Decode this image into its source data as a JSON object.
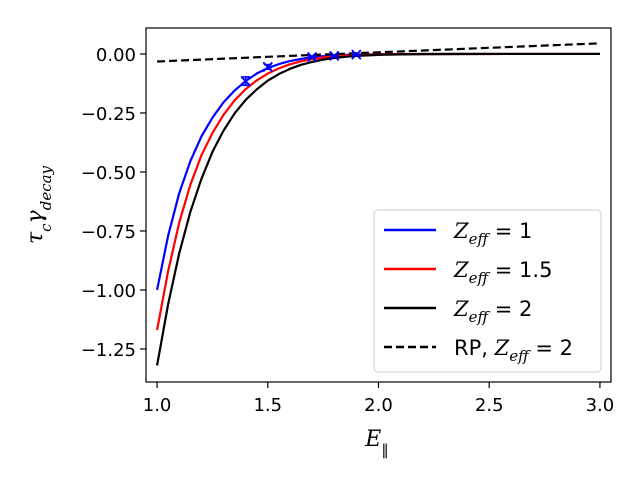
{
  "chart_data": {
    "type": "line",
    "xlabel": "E∥",
    "ylabel": "τcγdecay",
    "xlim": [
      0.95,
      3.05
    ],
    "ylim": [
      -1.39,
      0.11
    ],
    "xticks": [
      1.0,
      1.5,
      2.0,
      2.5,
      3.0
    ],
    "xtick_labels": [
      "1.0",
      "1.5",
      "2.0",
      "2.5",
      "3.0"
    ],
    "yticks": [
      0.0,
      -0.25,
      -0.5,
      -0.75,
      -1.0,
      -1.25
    ],
    "ytick_labels": [
      "0.00",
      "−0.25",
      "−0.50",
      "−0.75",
      "−1.00",
      "−1.25"
    ],
    "grid": false,
    "legend_position": "lower-right",
    "series": [
      {
        "name": "Z_eff = 1",
        "legend_main": "Z",
        "legend_sub": "eff",
        "legend_rest": " = 1",
        "color": "#0000ff",
        "style": "solid",
        "x": [
          1.0,
          1.05,
          1.1,
          1.15,
          1.2,
          1.25,
          1.3,
          1.35,
          1.4,
          1.45,
          1.5,
          1.55,
          1.6,
          1.65,
          1.7,
          1.75,
          1.8,
          1.85,
          1.9,
          2.0,
          2.1,
          2.2,
          2.4,
          2.6,
          2.8,
          3.0
        ],
        "y": [
          -1.0,
          -0.77,
          -0.59,
          -0.455,
          -0.35,
          -0.27,
          -0.205,
          -0.155,
          -0.115,
          -0.083,
          -0.06,
          -0.043,
          -0.03,
          -0.021,
          -0.014,
          -0.0095,
          -0.006,
          -0.004,
          -0.0025,
          -0.001,
          -0.0003,
          -0.0001,
          0.0,
          0.0,
          0.0,
          0.0
        ]
      },
      {
        "name": "Z_eff = 1.5",
        "legend_main": "Z",
        "legend_sub": "eff",
        "legend_rest": " = 1.5",
        "color": "#ff0000",
        "style": "solid",
        "x": [
          1.0,
          1.05,
          1.1,
          1.15,
          1.2,
          1.25,
          1.3,
          1.35,
          1.4,
          1.45,
          1.5,
          1.55,
          1.6,
          1.65,
          1.7,
          1.75,
          1.8,
          1.85,
          1.9,
          2.0,
          2.1,
          2.2,
          2.4,
          2.6,
          2.8,
          3.0
        ],
        "y": [
          -1.17,
          -0.92,
          -0.715,
          -0.555,
          -0.43,
          -0.335,
          -0.258,
          -0.197,
          -0.149,
          -0.112,
          -0.083,
          -0.061,
          -0.044,
          -0.031,
          -0.022,
          -0.015,
          -0.01,
          -0.0068,
          -0.0045,
          -0.002,
          -0.0008,
          -0.0003,
          -0.0001,
          0.0,
          0.0,
          0.0
        ]
      },
      {
        "name": "Z_eff = 2",
        "legend_main": "Z",
        "legend_sub": "eff",
        "legend_rest": " = 2",
        "color": "#000000",
        "style": "solid",
        "x": [
          1.0,
          1.05,
          1.1,
          1.15,
          1.2,
          1.25,
          1.3,
          1.35,
          1.4,
          1.45,
          1.5,
          1.55,
          1.6,
          1.65,
          1.7,
          1.75,
          1.8,
          1.85,
          1.9,
          2.0,
          2.1,
          2.2,
          2.4,
          2.6,
          2.8,
          3.0
        ],
        "y": [
          -1.32,
          -1.06,
          -0.845,
          -0.67,
          -0.53,
          -0.415,
          -0.325,
          -0.252,
          -0.195,
          -0.15,
          -0.113,
          -0.085,
          -0.063,
          -0.046,
          -0.034,
          -0.024,
          -0.017,
          -0.012,
          -0.008,
          -0.0038,
          -0.0016,
          -0.0006,
          -0.0001,
          0.0,
          0.0,
          0.0
        ]
      },
      {
        "name": "RP, Z_eff = 2",
        "legend_main": "RP, Z",
        "legend_sub": "eff",
        "legend_rest": " = 2",
        "color": "#000000",
        "style": "dashed",
        "x": [
          1.0,
          1.5,
          2.0,
          2.5,
          3.0
        ],
        "y": [
          -0.032,
          -0.012,
          0.007,
          0.026,
          0.045
        ]
      }
    ],
    "markers": {
      "color": "#0000ff",
      "symbol": "x",
      "x": [
        1.4,
        1.5,
        1.7,
        1.8,
        1.9
      ],
      "y": [
        -0.115,
        -0.055,
        -0.013,
        -0.008,
        -0.003
      ],
      "err": [
        0.018,
        0.01,
        0.004,
        0.002,
        0.002
      ]
    }
  }
}
